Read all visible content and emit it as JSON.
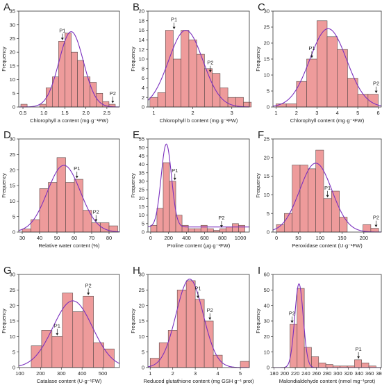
{
  "colors": {
    "bar_fill": "#ee9b9b",
    "bar_stroke": "#5a4a4a",
    "curve": "#7b2fbe",
    "frame": "#333333"
  },
  "chart_data": [
    {
      "panel": "A",
      "type": "bar",
      "subtype": "histogram-with-normal-fit",
      "xlabel": "Chlorophyll a content (mg·g⁻¹FW)",
      "ylabel": "Frequency",
      "xlim": [
        0.4,
        2.8
      ],
      "ylim": [
        0,
        35
      ],
      "xticks": [
        0.5,
        1.0,
        1.5,
        2.0,
        2.5
      ],
      "yticks": [
        0,
        5,
        10,
        15,
        20,
        25,
        30,
        35
      ],
      "tick_labels": [
        "0.5",
        "1.0",
        "1.5",
        "2.0",
        "2.5"
      ],
      "bin_width": 0.15,
      "bin_starts": [
        0.45,
        0.6,
        0.75,
        0.9,
        1.05,
        1.2,
        1.35,
        1.5,
        1.65,
        1.8,
        1.95,
        2.1,
        2.25,
        2.4,
        2.55
      ],
      "values": [
        1,
        0,
        0,
        1,
        7,
        11,
        24,
        27,
        20,
        17,
        11,
        9,
        5,
        2,
        1
      ],
      "curve": {
        "mean": 1.65,
        "sd": 0.29,
        "peak": 27.5
      },
      "annotations": [
        {
          "text": "P1",
          "x": 1.44,
          "y": 24
        },
        {
          "text": "P2",
          "x": 2.64,
          "y": 1
        }
      ]
    },
    {
      "panel": "B",
      "type": "bar",
      "subtype": "histogram-with-normal-fit",
      "xlabel": "Chlorophyll b content (mg·g⁻¹FW)",
      "ylabel": "Frequency",
      "xlim": [
        0.85,
        3.45
      ],
      "ylim": [
        0,
        20
      ],
      "xticks": [
        1,
        2,
        3
      ],
      "yticks": [
        0,
        2,
        4,
        6,
        8,
        10,
        12,
        14,
        16,
        18,
        20
      ],
      "tick_labels": [
        "1",
        "2",
        "3"
      ],
      "bin_width": 0.2,
      "bin_starts": [
        0.9,
        1.1,
        1.3,
        1.5,
        1.7,
        1.9,
        2.1,
        2.3,
        2.5,
        2.7,
        2.9,
        3.1,
        3.3
      ],
      "values": [
        2,
        3,
        16,
        10,
        16,
        14,
        11,
        8,
        7,
        4,
        2,
        2,
        1
      ],
      "curve": {
        "mean": 1.82,
        "sd": 0.44,
        "peak": 16
      },
      "annotations": [
        {
          "text": "P1",
          "x": 1.52,
          "y": 16
        },
        {
          "text": "P2",
          "x": 2.45,
          "y": 7
        }
      ]
    },
    {
      "panel": "C",
      "type": "bar",
      "subtype": "histogram-with-normal-fit",
      "xlabel": "Chlorophyll content (mg·g⁻¹FW)",
      "ylabel": "Frequency",
      "xlim": [
        0.85,
        6.15
      ],
      "ylim": [
        0,
        30
      ],
      "xticks": [
        1,
        2,
        3,
        4,
        5,
        6
      ],
      "yticks": [
        0,
        5,
        10,
        15,
        20,
        25,
        30
      ],
      "tick_labels": [
        "1",
        "2",
        "3",
        "4",
        "5",
        "6"
      ],
      "bin_width": 0.5,
      "bin_starts": [
        1.0,
        1.5,
        2.0,
        2.5,
        3.0,
        3.5,
        4.0,
        4.5,
        5.0,
        5.5
      ],
      "values": [
        1,
        1,
        8,
        15,
        27,
        22,
        18,
        9,
        4,
        4
      ],
      "curve": {
        "mean": 3.55,
        "sd": 0.9,
        "peak": 24.5
      },
      "annotations": [
        {
          "text": "P1",
          "x": 2.75,
          "y": 15
        },
        {
          "text": "P2",
          "x": 5.9,
          "y": 4
        }
      ]
    },
    {
      "panel": "D",
      "type": "bar",
      "subtype": "histogram-with-normal-fit",
      "xlabel": "Relative water content (%)",
      "ylabel": "Frequency",
      "xlim": [
        28,
        86
      ],
      "ylim": [
        0,
        30
      ],
      "xticks": [
        30,
        40,
        50,
        60,
        70,
        80
      ],
      "yticks": [
        0,
        5,
        10,
        15,
        20,
        25,
        30
      ],
      "tick_labels": [
        "30",
        "40",
        "50",
        "60",
        "70",
        "80"
      ],
      "bin_width": 5,
      "bin_starts": [
        30,
        35,
        40,
        45,
        50,
        55,
        60,
        65,
        70,
        75,
        80
      ],
      "values": [
        1,
        4,
        14,
        16,
        24,
        16,
        17,
        7,
        3,
        3,
        2
      ],
      "curve": {
        "mean": 54,
        "sd": 9.5,
        "peak": 21.5
      },
      "annotations": [
        {
          "text": "P1",
          "x": 61.5,
          "y": 17
        },
        {
          "text": "P2",
          "x": 72.5,
          "y": 3
        }
      ]
    },
    {
      "panel": "E",
      "type": "bar",
      "subtype": "histogram-with-normal-fit",
      "xlabel": "Proline content (μg·g⁻¹FW)",
      "ylabel": "Frequency",
      "xlim": [
        -30,
        1100
      ],
      "ylim": [
        0,
        55
      ],
      "xticks": [
        0,
        200,
        400,
        600,
        800,
        1000
      ],
      "yticks": [
        0,
        5,
        10,
        15,
        20,
        25,
        30,
        35,
        40,
        45,
        50,
        55
      ],
      "tick_labels": [
        "0",
        "200",
        "400",
        "600",
        "800",
        "1000"
      ],
      "bin_width": 70,
      "bin_starts": [
        0,
        70,
        140,
        210,
        280,
        350,
        420,
        490,
        560,
        630,
        700,
        770,
        840,
        910,
        980
      ],
      "values": [
        4,
        14,
        41,
        30,
        10,
        4,
        2,
        2,
        4,
        2,
        1,
        2,
        3,
        5,
        4
      ],
      "curve": {
        "mean": 175,
        "sd": 58,
        "peak": 52,
        "baseline": 3
      },
      "annotations": [
        {
          "text": "P1",
          "x": 270,
          "y": 30
        },
        {
          "text": "P2",
          "x": 790,
          "y": 2
        }
      ]
    },
    {
      "panel": "F",
      "type": "bar",
      "subtype": "histogram-with-normal-fit",
      "xlabel": "Peroxidase content (U·g⁻¹FW)",
      "ylabel": "Frequency",
      "xlim": [
        -8,
        240
      ],
      "ylim": [
        0,
        25
      ],
      "xticks": [
        0,
        50,
        100,
        150,
        200
      ],
      "yticks": [
        0,
        5,
        10,
        15,
        20,
        25
      ],
      "tick_labels": [
        "0",
        "50",
        "100",
        "150",
        "200"
      ],
      "bin_width": 18,
      "bin_starts": [
        0,
        18,
        36,
        54,
        72,
        90,
        108,
        126,
        144,
        162,
        180,
        198,
        216
      ],
      "values": [
        2,
        5,
        18,
        18,
        17,
        22,
        9,
        11,
        4,
        0,
        0,
        2,
        1
      ],
      "curve": {
        "mean": 90,
        "sd": 37,
        "peak": 18.5
      },
      "annotations": [
        {
          "text": "P1",
          "x": 117,
          "y": 9
        },
        {
          "text": "P2",
          "x": 228,
          "y": 1
        }
      ]
    },
    {
      "panel": "G",
      "type": "bar",
      "subtype": "histogram-with-normal-fit",
      "xlabel": "Catalase content (U·g⁻¹FW)",
      "ylabel": "Frequency",
      "xlim": [
        95,
        580
      ],
      "ylim": [
        0,
        30
      ],
      "xticks": [
        100,
        200,
        300,
        400,
        500
      ],
      "yticks": [
        0,
        5,
        10,
        15,
        20,
        25,
        30
      ],
      "tick_labels": [
        "100",
        "200",
        "300",
        "400",
        "500"
      ],
      "bin_width": 50,
      "bin_starts": [
        155,
        205,
        255,
        305,
        355,
        405,
        455,
        505
      ],
      "values": [
        7,
        12,
        10,
        24,
        18,
        23,
        8,
        6
      ],
      "curve": {
        "mean": 355,
        "sd": 95,
        "peak": 21.5
      },
      "annotations": [
        {
          "text": "P1",
          "x": 280,
          "y": 10
        },
        {
          "text": "P2",
          "x": 430,
          "y": 23
        }
      ]
    },
    {
      "panel": "H",
      "type": "bar",
      "subtype": "histogram-with-normal-fit",
      "xlabel": "Reduced glutathione content (mg GSH g⁻¹ prot)",
      "ylabel": "Frequency",
      "xlim": [
        0.9,
        5.4
      ],
      "ylim": [
        0,
        30
      ],
      "xticks": [
        1,
        2,
        3,
        4,
        5
      ],
      "yticks": [
        0,
        5,
        10,
        15,
        20,
        25,
        30
      ],
      "tick_labels": [
        "1",
        "2",
        "3",
        "4",
        "5"
      ],
      "bin_width": 0.4,
      "bin_starts": [
        1.0,
        1.4,
        1.8,
        2.2,
        2.6,
        3.0,
        3.4,
        3.8,
        4.2,
        4.6,
        5.0
      ],
      "values": [
        3,
        8,
        12,
        25,
        28,
        22,
        15,
        4,
        0,
        0,
        2
      ],
      "curve": {
        "mean": 2.75,
        "sd": 0.6,
        "peak": 28.5
      },
      "annotations": [
        {
          "text": "P1",
          "x": 3.12,
          "y": 22
        },
        {
          "text": "P2",
          "x": 3.65,
          "y": 15
        }
      ]
    },
    {
      "panel": "I",
      "type": "bar",
      "subtype": "histogram-with-normal-fit",
      "xlabel": "Malondialdehyde content (nmol mg⁻¹prot)",
      "ylabel": "Frequency",
      "xlim": [
        178,
        382
      ],
      "ylim": [
        0,
        60
      ],
      "xticks": [
        180,
        200,
        220,
        240,
        260,
        280,
        300,
        320,
        340,
        360,
        380
      ],
      "yticks": [
        0,
        10,
        20,
        30,
        40,
        50,
        60
      ],
      "tick_labels": [
        "180",
        "200",
        "220",
        "240",
        "260",
        "280",
        "300",
        "320",
        "340",
        "360",
        "380"
      ],
      "bin_width": 13.5,
      "bin_starts": [
        210,
        223.5,
        237,
        250.5,
        264,
        277.5,
        291,
        304.5,
        318,
        331.5,
        345,
        358.5
      ],
      "values": [
        28,
        51,
        13,
        7,
        3,
        2,
        1,
        1,
        1,
        5,
        3,
        1
      ],
      "curve": {
        "mean": 227,
        "sd": 8,
        "peak": 54
      },
      "annotations": [
        {
          "text": "P2",
          "x": 214,
          "y": 28
        },
        {
          "text": "P1",
          "x": 339,
          "y": 5
        }
      ]
    }
  ]
}
